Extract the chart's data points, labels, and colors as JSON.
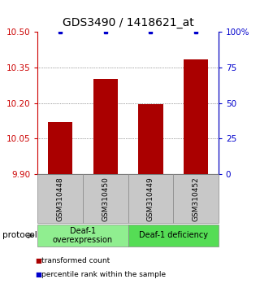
{
  "title": "GDS3490 / 1418621_at",
  "samples": [
    "GSM310448",
    "GSM310450",
    "GSM310449",
    "GSM310452"
  ],
  "red_values": [
    10.12,
    10.3,
    10.195,
    10.385
  ],
  "blue_values": [
    100,
    100,
    100,
    100
  ],
  "ylim_left": [
    9.9,
    10.5
  ],
  "ylim_right": [
    0,
    100
  ],
  "yticks_left": [
    9.9,
    10.05,
    10.2,
    10.35,
    10.5
  ],
  "yticks_right": [
    0,
    25,
    50,
    75,
    100
  ],
  "ytick_labels_right": [
    "0",
    "25",
    "50",
    "75",
    "100%"
  ],
  "groups": [
    {
      "label": "Deaf-1\noverexpression",
      "samples": [
        0,
        1
      ],
      "color": "#90EE90"
    },
    {
      "label": "Deaf-1 deficiency",
      "samples": [
        2,
        3
      ],
      "color": "#55DD55"
    }
  ],
  "bar_color": "#AA0000",
  "dot_color": "#0000CC",
  "grid_color": "#888888",
  "bg_color": "#FFFFFF",
  "protocol_label": "protocol",
  "legend_red": "transformed count",
  "legend_blue": "percentile rank within the sample",
  "title_fontsize": 10,
  "tick_fontsize": 7.5,
  "axis_color_left": "#CC0000",
  "axis_color_right": "#0000CC",
  "sample_box_color": "#C8C8C8",
  "sample_box_edge": "#888888"
}
